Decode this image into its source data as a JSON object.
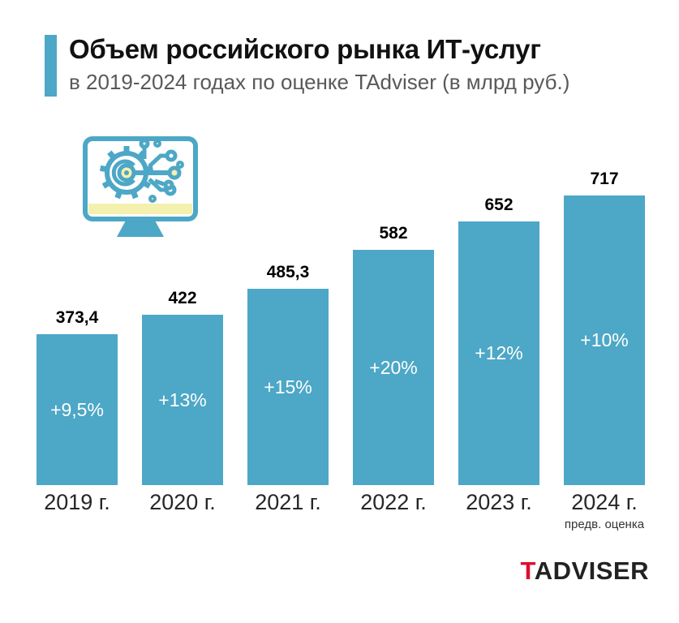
{
  "header": {
    "title": "Объем российского рынка ИТ-услуг",
    "subtitle": "в 2019-2024 годах по оценке TAdviser (в млрд руб.)"
  },
  "colors": {
    "accent": "#4DA7C6",
    "bar": "#4DA7C6",
    "yellow": "#F4F0AE",
    "title": "#111111",
    "subtitle": "#595959",
    "logo_red": "#E30B2D",
    "logo_dark": "#222222"
  },
  "icon": {
    "name": "computer-gear-circuit-icon"
  },
  "chart_data": {
    "type": "bar",
    "title": "Объем российского рынка ИТ-услуг",
    "subtitle": "в 2019-2024 годах по оценке TAdviser (в млрд руб.)",
    "unit": "млрд руб.",
    "categories": [
      "2019 г.",
      "2020 г.",
      "2021 г.",
      "2022 г.",
      "2023 г.",
      "2024 г."
    ],
    "values": [
      373.4,
      422,
      485.3,
      582,
      652,
      717
    ],
    "value_labels": [
      "373,4",
      "422",
      "485,3",
      "582",
      "652",
      "717"
    ],
    "growth_labels": [
      "+9,5%",
      "+13%",
      "+15%",
      "+20%",
      "+12%",
      "+10%"
    ],
    "bar_color": "#4DA7C6",
    "ylim": [
      0,
      717
    ],
    "grid": false,
    "legend": false,
    "footnotes": [
      {
        "category": "2024 г.",
        "text": "предв. оценка"
      }
    ]
  },
  "logo": {
    "prefix": "T",
    "rest": "ADVISER"
  }
}
